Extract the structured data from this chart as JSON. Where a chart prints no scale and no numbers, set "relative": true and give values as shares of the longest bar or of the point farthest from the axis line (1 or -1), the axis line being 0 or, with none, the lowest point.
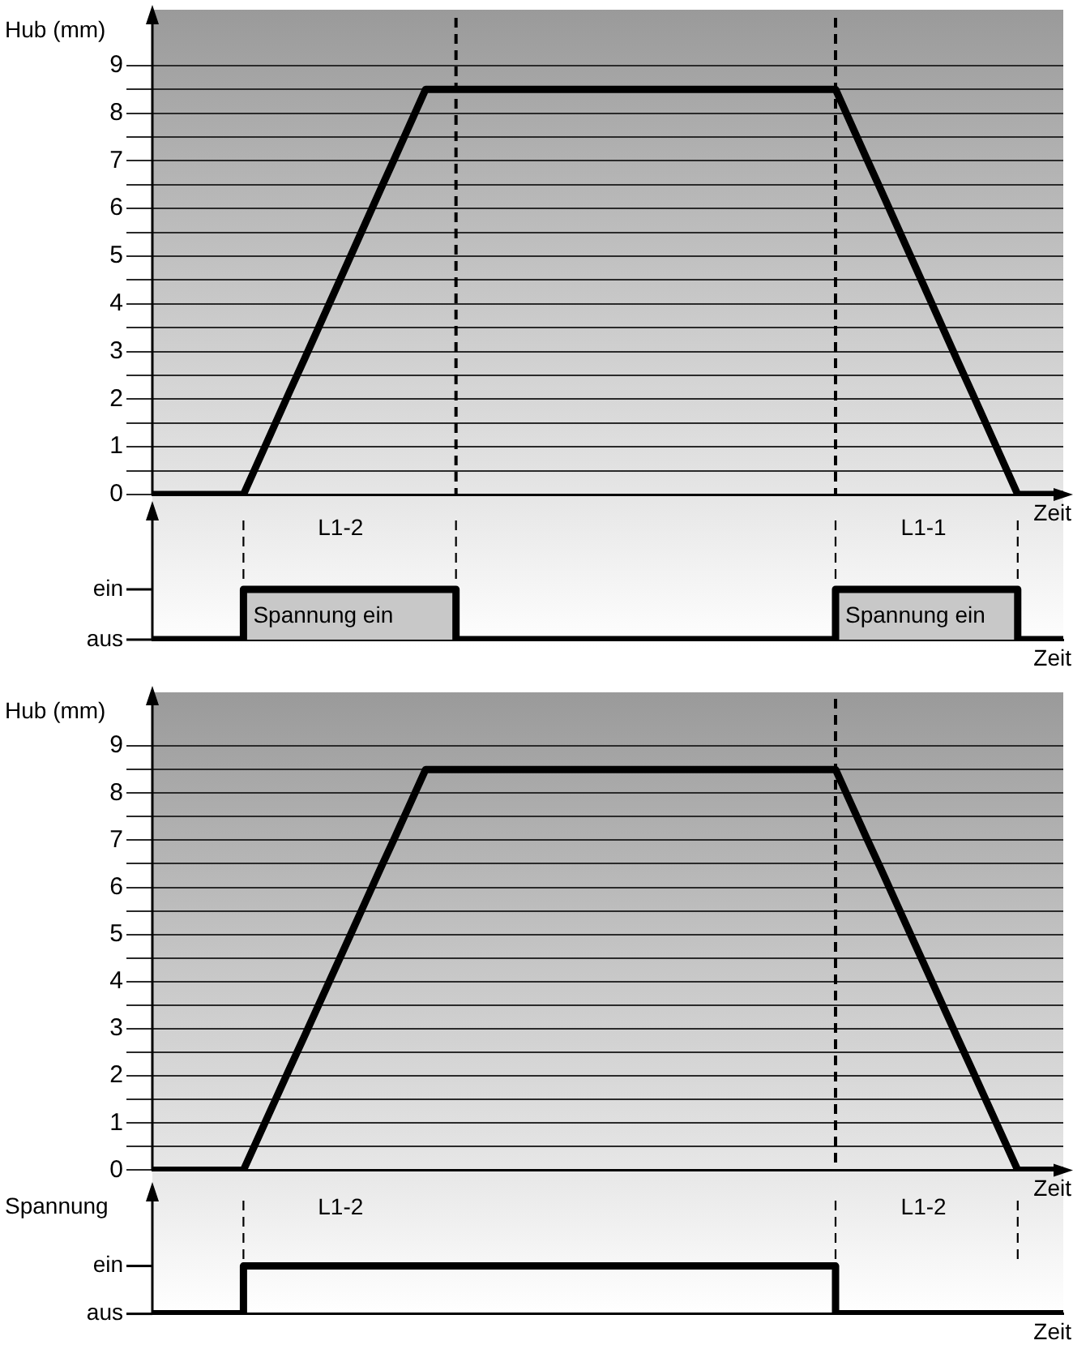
{
  "chart_data": [
    {
      "type": "line",
      "ylabel": "Hub (mm)",
      "xlabel": "Zeit",
      "categories": [
        null,
        null,
        null,
        null,
        null,
        null,
        null,
        null,
        null,
        null,
        null,
        null,
        null,
        null,
        null,
        null,
        null,
        null,
        null,
        null,
        null,
        null,
        null,
        null,
        null,
        null,
        null,
        null,
        null,
        null,
        null,
        null,
        null,
        null,
        null,
        null,
        null,
        null,
        null,
        null,
        null,
        null,
        null,
        null,
        null,
        null,
        null,
        null,
        null,
        null,
        null,
        null,
        null,
        null,
        null,
        null,
        null,
        null,
        null,
        null,
        null
      ],
      "ylim": [
        0,
        10
      ],
      "yticks": [
        0,
        {
          "value": 0.5,
          "label": null
        },
        1,
        {
          "value": 1.5,
          "label": null
        },
        2,
        {
          "value": 2.5,
          "label": null
        },
        3,
        {
          "value": 3.5,
          "label": null
        },
        4,
        {
          "value": 4.5,
          "label": null
        },
        5,
        {
          "value": 5.5,
          "label": null
        },
        6,
        {
          "value": 6.5,
          "label": null
        },
        7,
        {
          "value": 7.5,
          "label": null
        },
        8,
        {
          "value": 8.5,
          "label": null
        },
        9
      ],
      "grid": "y",
      "tick_labels": "y",
      "marker": "none",
      "line_style": "solid",
      "series": [
        {
          "color": "#000000",
          "values": [
            0,
            0,
            0,
            0,
            0,
            0,
            0,
            0.71,
            1.42,
            2.13,
            2.83,
            3.54,
            4.25,
            4.96,
            5.67,
            6.38,
            7.08,
            7.79,
            8.5,
            8.5,
            8.5,
            8.5,
            8.5,
            8.5,
            8.5,
            8.5,
            8.5,
            8.5,
            8.5,
            8.5,
            8.5,
            8.5,
            8.5,
            8.5,
            8.5,
            8.5,
            8.5,
            8.5,
            8.5,
            8.5,
            8.5,
            8.5,
            8.5,
            8.5,
            8.5,
            8.5,
            7.79,
            7.08,
            6.38,
            5.67,
            4.96,
            4.25,
            3.54,
            2.83,
            2.13,
            1.42,
            0.71,
            0,
            0,
            0,
            0
          ]
        }
      ]
    },
    {
      "type": "step",
      "relative": true,
      "xlabel": "Zeit",
      "categories": [
        null,
        null,
        null,
        null,
        null,
        null,
        null,
        null,
        null,
        null,
        null,
        null,
        null,
        null,
        null,
        null,
        null,
        null,
        null,
        null,
        null,
        null,
        null,
        null,
        null,
        null,
        null,
        null,
        null,
        null,
        null,
        null,
        null,
        null,
        null,
        null,
        null,
        null,
        null,
        null,
        null,
        null,
        null,
        null,
        null,
        null,
        null,
        null,
        null,
        null,
        null,
        null,
        null,
        null,
        null,
        null,
        null,
        null,
        null,
        null,
        null
      ],
      "marker": "none",
      "line_style": "solid",
      "series": [
        {
          "color": "#000000",
          "values": [
            0,
            0,
            0,
            0,
            0,
            0,
            1,
            1,
            1,
            1,
            1,
            1,
            1,
            1,
            1,
            1,
            1,
            1,
            1,
            1,
            0,
            0,
            0,
            0,
            0,
            0,
            0,
            0,
            0,
            0,
            0,
            0,
            0,
            0,
            0,
            0,
            0,
            0,
            0,
            0,
            0,
            0,
            0,
            0,
            0,
            1,
            1,
            1,
            1,
            1,
            1,
            1,
            1,
            1,
            1,
            1,
            1,
            0,
            0,
            0,
            0
          ]
        }
      ],
      "annotations": [
        "L1-2",
        "L1-1",
        "Spannung ein",
        "Spannung ein",
        "ein",
        "aus"
      ]
    },
    {
      "type": "line",
      "ylabel": "Hub (mm)",
      "xlabel": "Zeit",
      "categories": [
        null,
        null,
        null,
        null,
        null,
        null,
        null,
        null,
        null,
        null,
        null,
        null,
        null,
        null,
        null,
        null,
        null,
        null,
        null,
        null,
        null,
        null,
        null,
        null,
        null,
        null,
        null,
        null,
        null,
        null,
        null,
        null,
        null,
        null,
        null,
        null,
        null,
        null,
        null,
        null,
        null,
        null,
        null,
        null,
        null,
        null,
        null,
        null,
        null,
        null,
        null,
        null,
        null,
        null,
        null,
        null,
        null,
        null,
        null,
        null,
        null
      ],
      "ylim": [
        0,
        10
      ],
      "yticks": [
        0,
        {
          "value": 0.5,
          "label": null
        },
        1,
        {
          "value": 1.5,
          "label": null
        },
        2,
        {
          "value": 2.5,
          "label": null
        },
        3,
        {
          "value": 3.5,
          "label": null
        },
        4,
        {
          "value": 4.5,
          "label": null
        },
        5,
        {
          "value": 5.5,
          "label": null
        },
        6,
        {
          "value": 6.5,
          "label": null
        },
        7,
        {
          "value": 7.5,
          "label": null
        },
        8,
        {
          "value": 8.5,
          "label": null
        },
        9
      ],
      "grid": "y",
      "tick_labels": "y",
      "marker": "none",
      "line_style": "solid",
      "series": [
        {
          "color": "#000000",
          "values": [
            0,
            0,
            0,
            0,
            0,
            0,
            0,
            0.71,
            1.42,
            2.13,
            2.83,
            3.54,
            4.25,
            4.96,
            5.67,
            6.38,
            7.08,
            7.79,
            8.5,
            8.5,
            8.5,
            8.5,
            8.5,
            8.5,
            8.5,
            8.5,
            8.5,
            8.5,
            8.5,
            8.5,
            8.5,
            8.5,
            8.5,
            8.5,
            8.5,
            8.5,
            8.5,
            8.5,
            8.5,
            8.5,
            8.5,
            8.5,
            8.5,
            8.5,
            8.5,
            8.5,
            7.79,
            7.08,
            6.38,
            5.67,
            4.96,
            4.25,
            3.54,
            2.83,
            2.13,
            1.42,
            0.71,
            0,
            0,
            0,
            0
          ]
        }
      ]
    },
    {
      "type": "step",
      "relative": true,
      "ylabel": "Spannung",
      "xlabel": "Zeit",
      "categories": [
        null,
        null,
        null,
        null,
        null,
        null,
        null,
        null,
        null,
        null,
        null,
        null,
        null,
        null,
        null,
        null,
        null,
        null,
        null,
        null,
        null,
        null,
        null,
        null,
        null,
        null,
        null,
        null,
        null,
        null,
        null,
        null,
        null,
        null,
        null,
        null,
        null,
        null,
        null,
        null,
        null,
        null,
        null,
        null,
        null,
        null,
        null,
        null,
        null,
        null,
        null,
        null,
        null,
        null,
        null,
        null,
        null,
        null,
        null,
        null,
        null
      ],
      "marker": "none",
      "line_style": "solid",
      "series": [
        {
          "color": "#000000",
          "values": [
            0,
            0,
            0,
            0,
            0,
            0,
            1,
            1,
            1,
            1,
            1,
            1,
            1,
            1,
            1,
            1,
            1,
            1,
            1,
            1,
            1,
            1,
            1,
            1,
            1,
            1,
            1,
            1,
            1,
            1,
            1,
            1,
            1,
            1,
            1,
            1,
            1,
            1,
            1,
            1,
            1,
            1,
            1,
            1,
            1,
            0,
            0,
            0,
            0,
            0,
            0,
            0,
            0,
            0,
            0,
            0,
            0,
            0,
            0,
            0,
            0
          ]
        }
      ],
      "annotations": [
        "L1-2",
        "L1-2",
        "ein",
        "aus"
      ]
    }
  ]
}
